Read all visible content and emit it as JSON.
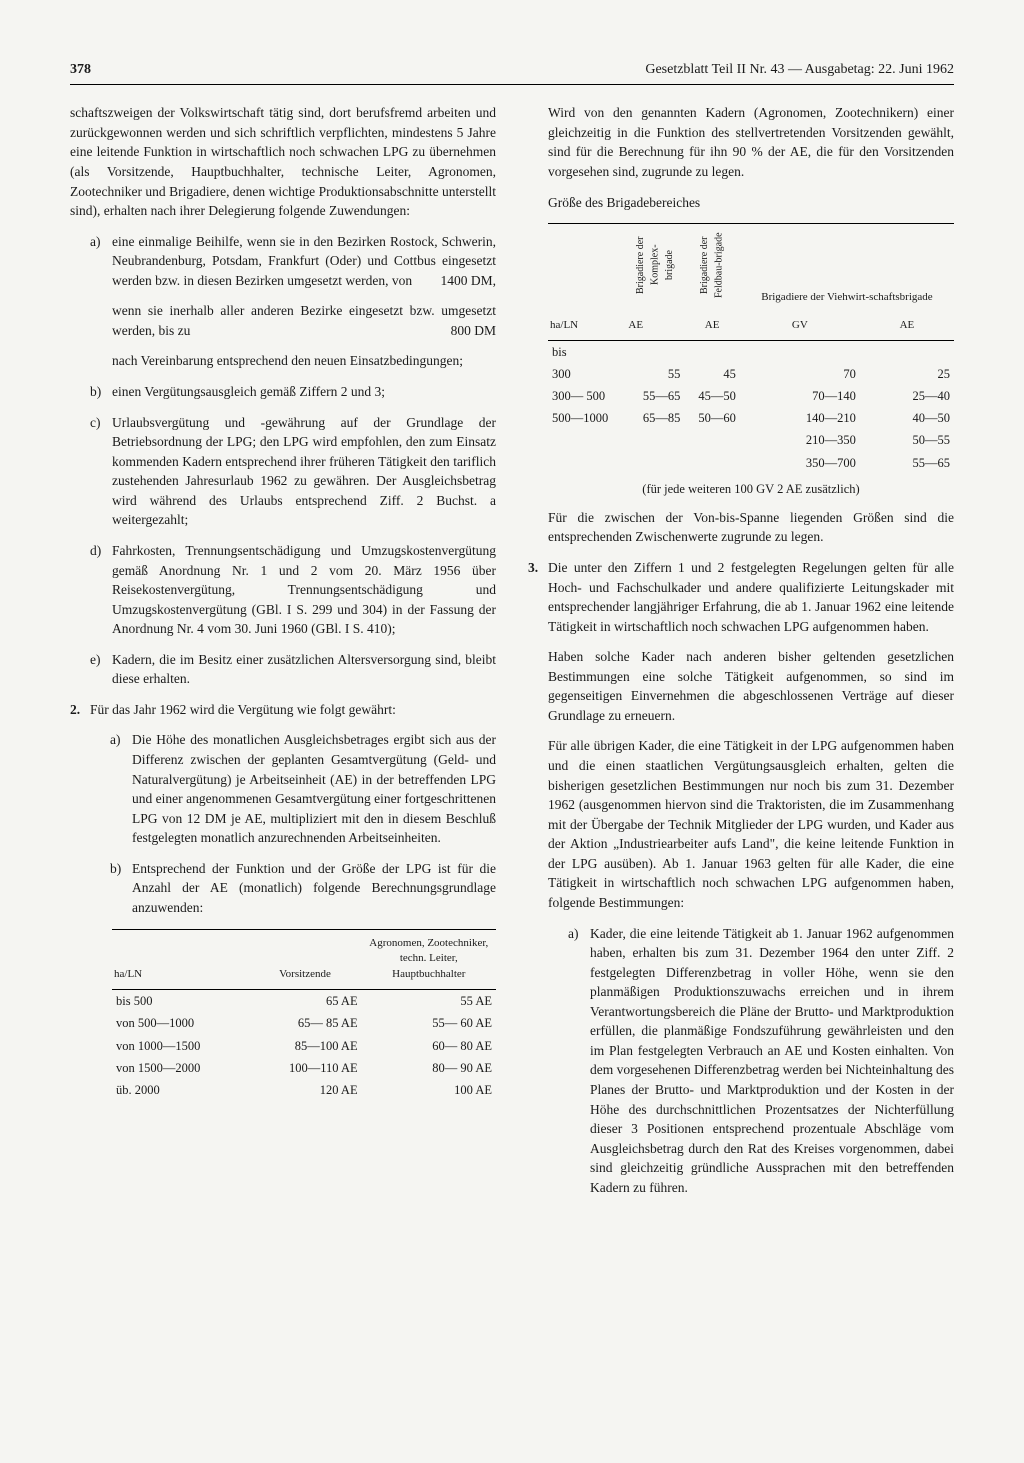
{
  "header": {
    "pageNum": "378",
    "title": "Gesetzblatt Teil II Nr. 43 — Ausgabetag: 22. Juni 1962"
  },
  "leftCol": {
    "intro": "schaftszweigen der Volkswirtschaft tätig sind, dort berufsfremd arbeiten und zurückgewonnen werden und sich schriftlich verpflichten, mindestens 5 Jahre eine leitende Funktion in wirtschaftlich noch schwachen LPG zu übernehmen (als Vorsitzende, Hauptbuchhalter, technische Leiter, Agronomen, Zootechniker und Brigadiere, denen wichtige Produktionsabschnitte unterstellt sind), erhalten nach ihrer Delegierung folgende Zuwendungen:",
    "a1": "eine einmalige Beihilfe, wenn sie in den Bezirken Rostock, Schwerin, Neubrandenburg, Potsdam, Frankfurt (Oder) und Cottbus eingesetzt werden bzw. in diesen Bezirken umgesetzt werden, von",
    "a1_val": "1400 DM,",
    "a1b": "wenn sie inerhalb aller anderen Bezirke eingesetzt bzw. umgesetzt werden, bis zu",
    "a1b_val": "800 DM",
    "a1c": "nach Vereinbarung entsprechend den neuen Einsatzbedingungen;",
    "b": "einen Vergütungsausgleich gemäß Ziffern 2 und 3;",
    "c": "Urlaubsvergütung und -gewährung auf der Grundlage der Betriebsordnung der LPG; den LPG wird empfohlen, den zum Einsatz kommenden Kadern entsprechend ihrer früheren Tätigkeit den tariflich zustehenden Jahresurlaub 1962 zu gewähren. Der Ausgleichsbetrag wird während des Urlaubs entsprechend Ziff. 2 Buchst. a weitergezahlt;",
    "d": "Fahrkosten, Trennungsentschädigung und Umzugskostenvergütung gemäß Anordnung Nr. 1 und 2 vom 20. März 1956 über Reisekostenvergütung, Trennungsentschädigung und Umzugskostenvergütung (GBl. I S. 299 und 304) in der Fassung der Anordnung Nr. 4 vom 30. Juni 1960 (GBl. I S. 410);",
    "e": "Kadern, die im Besitz einer zusätzlichen Altersversorgung sind, bleibt diese erhalten.",
    "item2": "Für das Jahr 1962 wird die Vergütung wie folgt gewährt:",
    "item2a": "Die Höhe des monatlichen Ausgleichsbetrages ergibt sich aus der Differenz zwischen der geplanten Gesamtvergütung (Geld- und Naturalvergütung) je Arbeitseinheit (AE) in der betreffenden LPG und einer angenommenen Gesamtvergütung einer fortgeschrittenen LPG von 12 DM je AE, multipliziert mit den in diesem Beschluß festgelegten monatlich anzurechnenden Arbeitseinheiten.",
    "item2b": "Entsprechend der Funktion und der Größe der LPG ist für die Anzahl der AE (monatlich) folgende Berechnungsgrundlage anzuwenden:",
    "table1": {
      "headers": [
        "ha/LN",
        "Vorsitzende",
        "Agronomen, Zootechniker, techn. Leiter, Hauptbuchhalter"
      ],
      "rows": [
        [
          "bis    500",
          "65 AE",
          "55 AE"
        ],
        [
          "von  500—1000",
          "65— 85 AE",
          "55— 60 AE"
        ],
        [
          "von 1000—1500",
          "85—100 AE",
          "60— 80 AE"
        ],
        [
          "von 1500—2000",
          "100—110 AE",
          "80— 90 AE"
        ],
        [
          "üb.  2000",
          "120 AE",
          "100 AE"
        ]
      ]
    }
  },
  "rightCol": {
    "top": "Wird von den genannten Kadern (Agronomen, Zootechnikern) einer gleichzeitig in die Funktion des stellvertretenden Vorsitzenden gewählt, sind für die Berechnung für ihn 90 % der AE, die für den Vorsitzenden vorgesehen sind, zugrunde zu legen.",
    "tableTitle": "Größe des Brigadebereiches",
    "table2": {
      "headers": [
        "ha/LN",
        "Brigadiere der Komplex-brigade",
        "Brigadiere der Feldbau-brigade",
        "Brigadiere der Viehwirt-schaftsbrigade"
      ],
      "subhdr": [
        "",
        "AE",
        "AE",
        "GV",
        "AE"
      ],
      "rows": [
        [
          "bis",
          "",
          "",
          "",
          ""
        ],
        [
          "300",
          "55",
          "45",
          "70",
          "25"
        ],
        [
          "300— 500",
          "55—65",
          "45—50",
          "70—140",
          "25—40"
        ],
        [
          "500—1000",
          "65—85",
          "50—60",
          "140—210",
          "40—50"
        ],
        [
          "",
          "",
          "",
          "210—350",
          "50—55"
        ],
        [
          "",
          "",
          "",
          "350—700",
          "55—65"
        ]
      ]
    },
    "tableNote": "(für jede weiteren 100 GV 2 AE zusätzlich)",
    "afterTable": "Für die zwischen der Von-bis-Spanne liegenden Größen sind die entsprechenden Zwischenwerte zugrunde zu legen.",
    "item3a": "Die unter den Ziffern 1 und 2 festgelegten Regelungen gelten für alle Hoch- und Fachschulkader und andere qualifizierte Leitungskader mit entsprechender langjähriger Erfahrung, die ab 1. Januar 1962 eine leitende Tätigkeit in wirtschaftlich noch schwachen LPG aufgenommen haben.",
    "item3b": "Haben solche Kader nach anderen bisher geltenden gesetzlichen Bestimmungen eine solche Tätigkeit aufgenommen, so sind im gegenseitigen Einvernehmen die abgeschlossenen Verträge auf dieser Grundlage zu erneuern.",
    "item3c": "Für alle übrigen Kader, die eine Tätigkeit in der LPG aufgenommen haben und die einen staatlichen Vergütungsausgleich erhalten, gelten die bisherigen gesetzlichen Bestimmungen nur noch bis zum 31. Dezember 1962 (ausgenommen hiervon sind die Traktoristen, die im Zusammenhang mit der Übergabe der Technik Mitglieder der LPG wurden, und Kader aus der Aktion „Industriearbeiter aufs Land\", die keine leitende Funktion in der LPG ausüben). Ab 1. Januar 1963 gelten für alle Kader, die eine Tätigkeit in wirtschaftlich noch schwachen LPG aufgenommen haben, folgende Bestimmungen:",
    "item3_a": "Kader, die eine leitende Tätigkeit ab 1. Januar 1962 aufgenommen haben, erhalten bis zum 31. Dezember 1964 den unter Ziff. 2 festgelegten Differenzbetrag in voller Höhe, wenn sie den planmäßigen Produktionszuwachs erreichen und in ihrem Verantwortungsbereich die Pläne der Brutto- und Marktproduktion erfüllen, die planmäßige Fondszuführung gewährleisten und den im Plan festgelegten Verbrauch an AE und Kosten einhalten. Von dem vorgesehenen Differenzbetrag werden bei Nichteinhaltung des Planes der Brutto- und Marktproduktion und der Kosten in der Höhe des durchschnittlichen Prozentsatzes der Nichterfüllung dieser 3 Positionen entsprechend prozentuale Abschläge vom Ausgleichsbetrag durch den Rat des Kreises vorgenommen, dabei sind gleichzeitig gründliche Aussprachen mit den betreffenden Kadern zu führen."
  }
}
